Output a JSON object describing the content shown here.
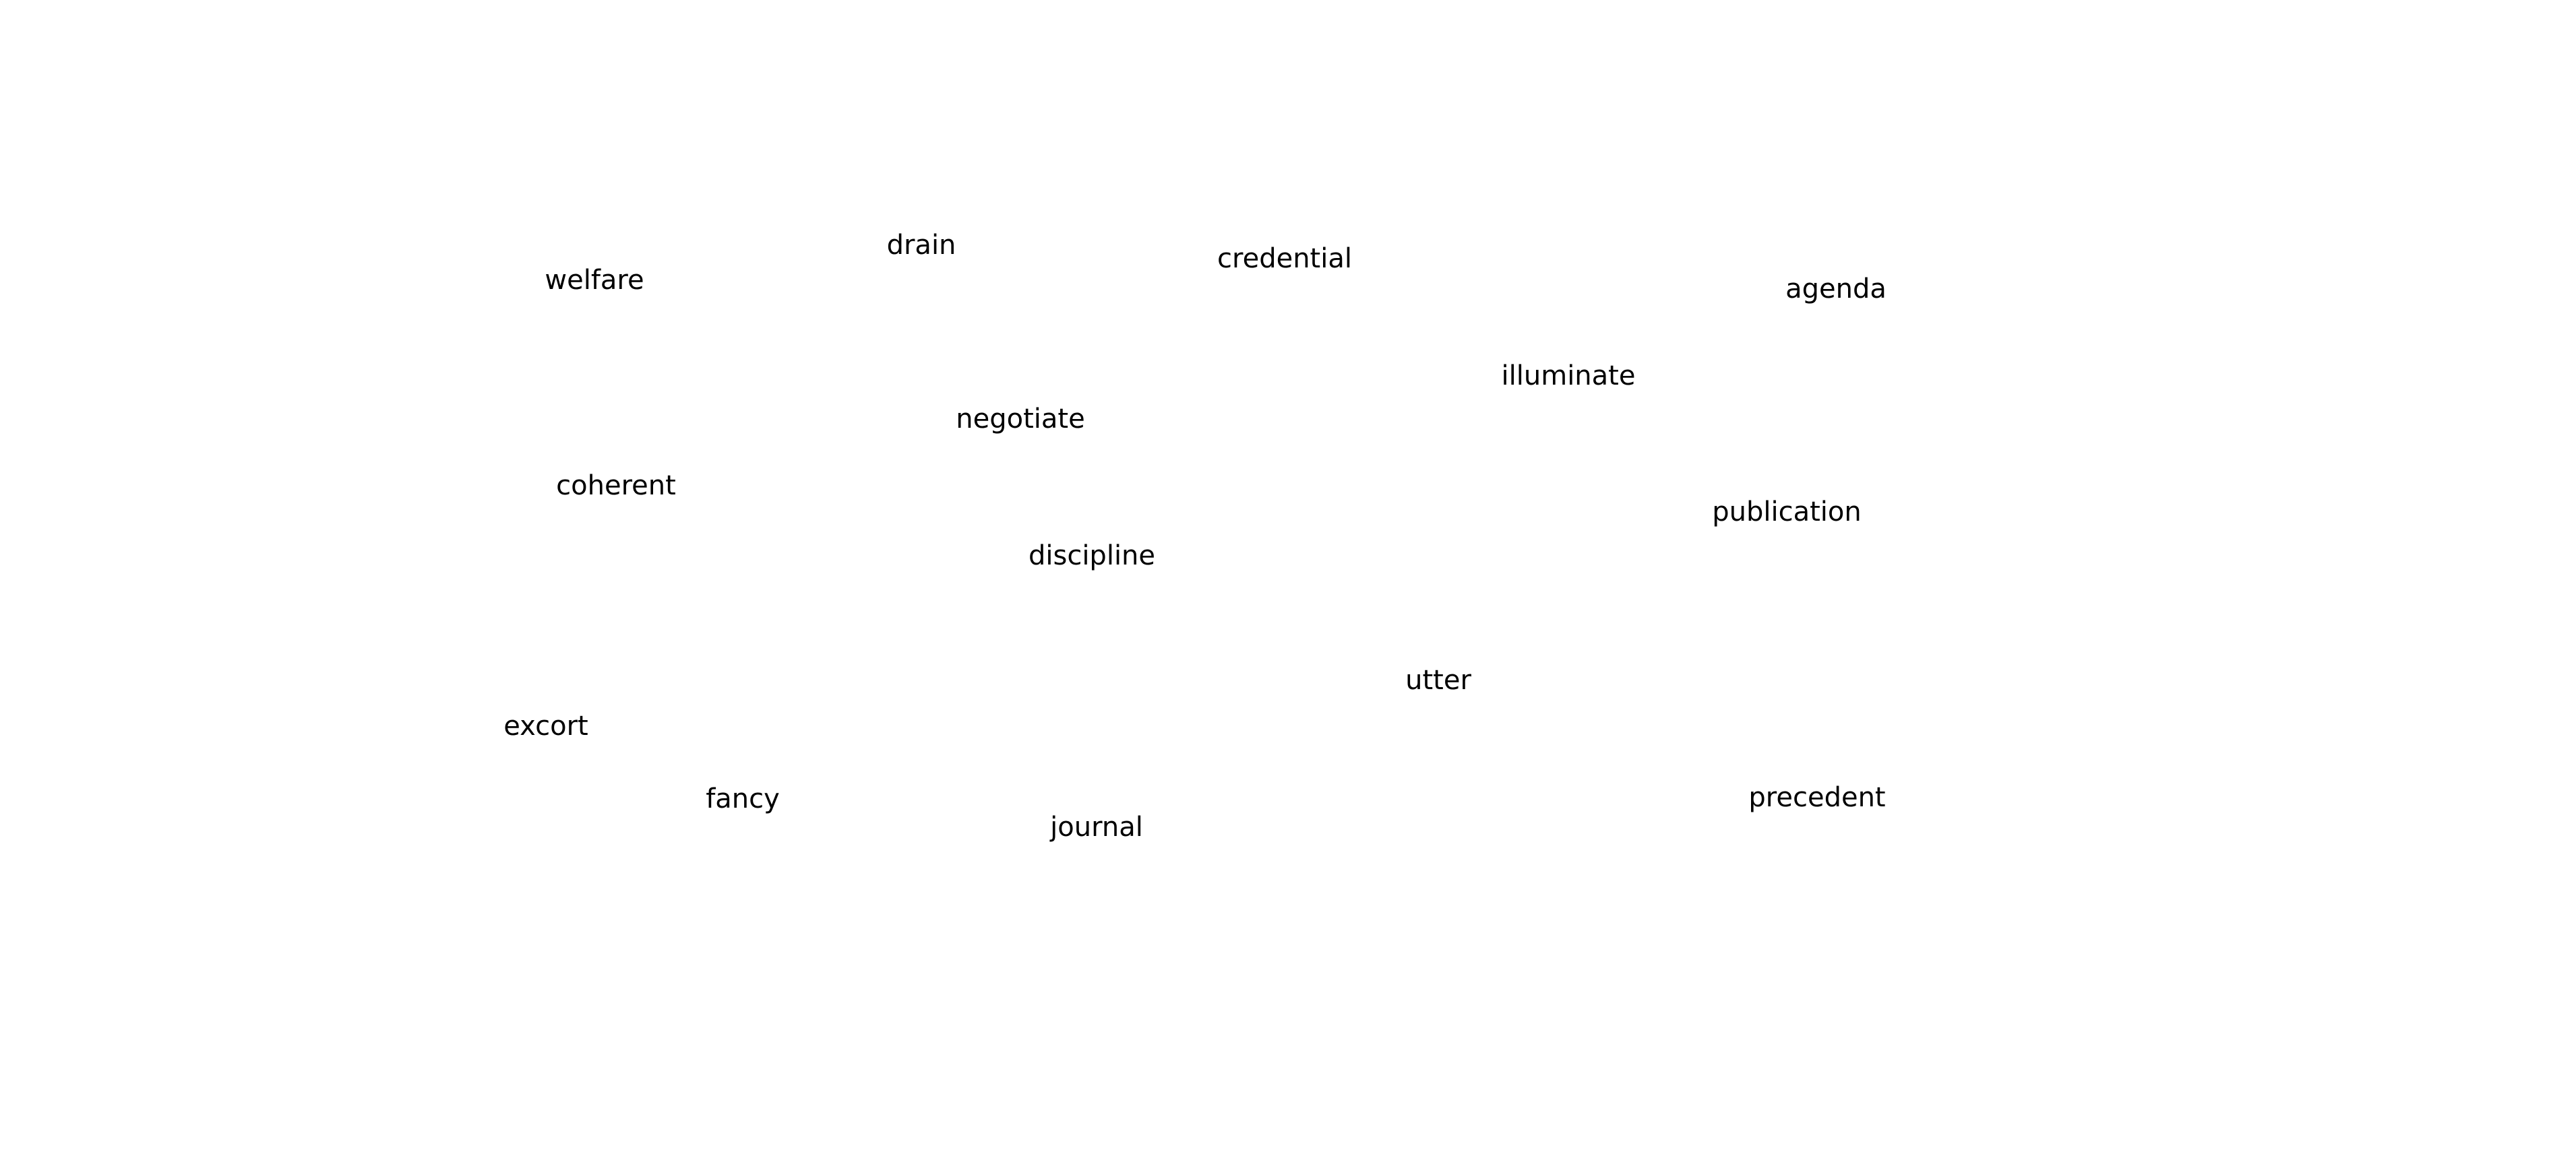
{
  "words": {
    "welfare": "welfare",
    "drain": "drain",
    "credential": "credential",
    "agenda": "agenda",
    "illuminate": "illuminate",
    "negotiate": "negotiate",
    "coherent": "coherent",
    "publication": "publication",
    "discipline": "discipline",
    "utter": "utter",
    "excort": "excort",
    "fancy": "fancy",
    "precedent": "precedent",
    "journal": "journal"
  }
}
